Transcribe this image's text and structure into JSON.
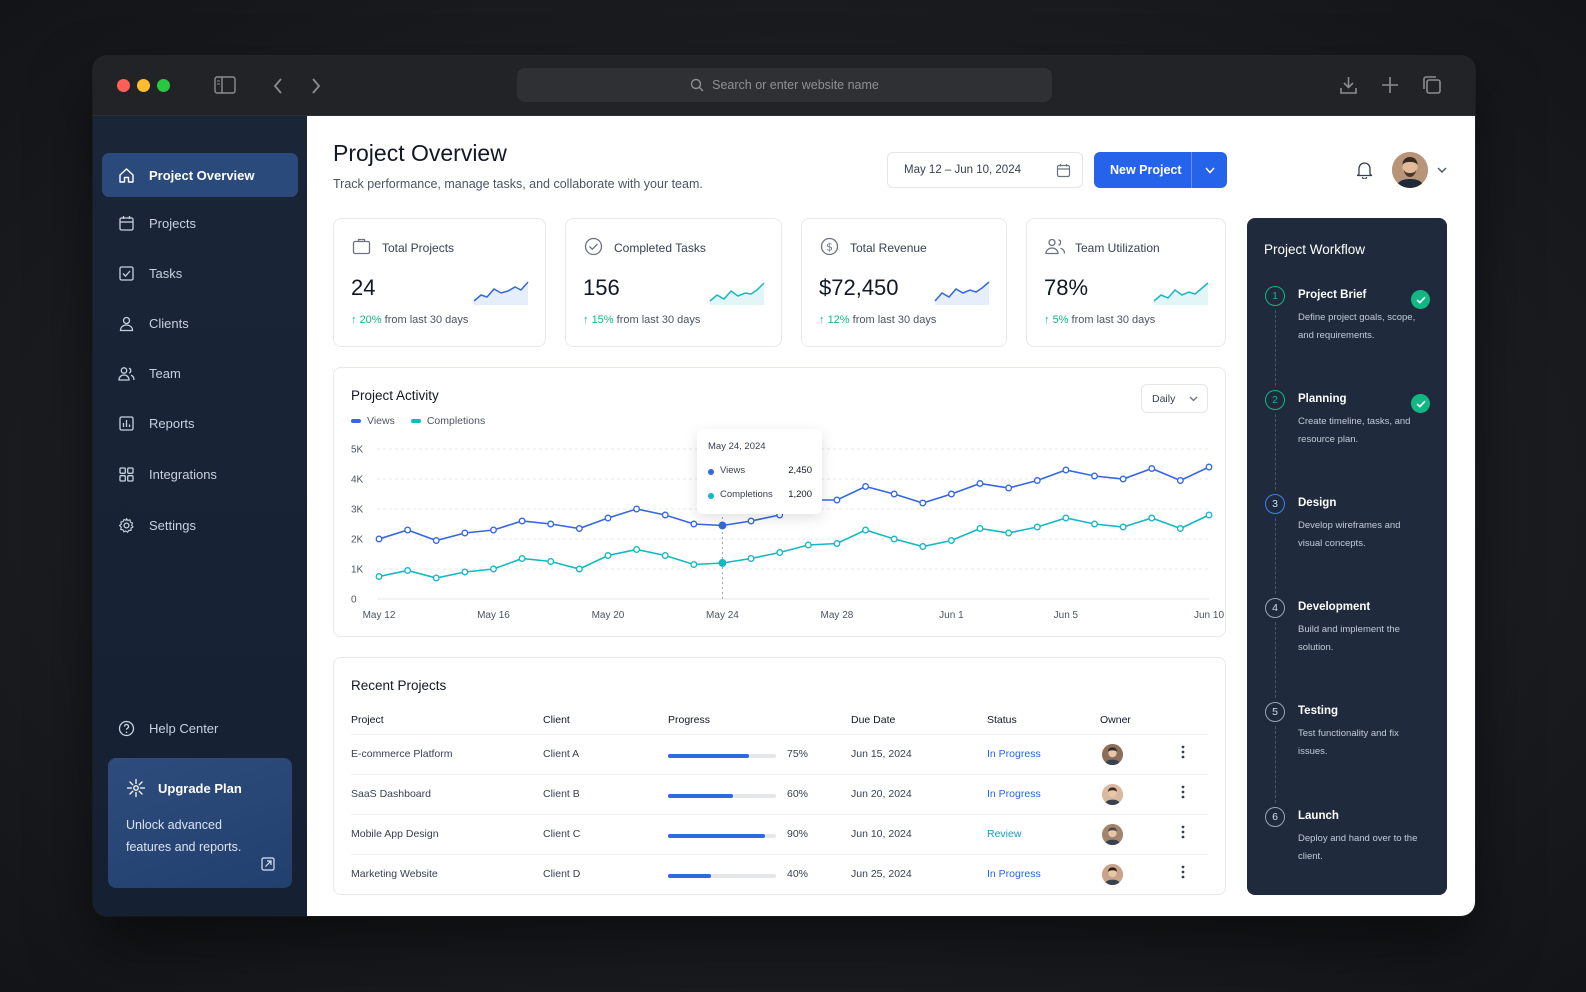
{
  "browser": {
    "url_placeholder": "Search or enter website name",
    "icons": [
      "sidebar-toggle-icon",
      "back-icon",
      "forward-icon",
      "search-icon",
      "download-icon",
      "plus-icon",
      "tabs-icon"
    ]
  },
  "sidebar": {
    "items": [
      {
        "label": "Project Overview",
        "icon": "home-icon",
        "active": true
      },
      {
        "label": "Projects",
        "icon": "calendar-icon"
      },
      {
        "label": "Tasks",
        "icon": "checkbox-icon"
      },
      {
        "label": "Clients",
        "icon": "user-icon"
      },
      {
        "label": "Team",
        "icon": "users-icon"
      },
      {
        "label": "Reports",
        "icon": "report-icon"
      },
      {
        "label": "Integrations",
        "icon": "grid-icon"
      },
      {
        "label": "Settings",
        "icon": "gear-icon"
      }
    ],
    "help": "Help Center",
    "upgrade": {
      "title": "Upgrade Plan",
      "desc_line1": "Unlock advanced",
      "desc_line2": "features and reports."
    }
  },
  "header": {
    "title": "Project Overview",
    "subtitle": "Track performance, manage tasks, and collaborate with your team.",
    "date_range": "May 12 – Jun 10, 2024",
    "new_project": "New Project"
  },
  "kpis": [
    {
      "label": "Total Projects",
      "value": "24",
      "delta": "20%",
      "delta_text": "from last 30 days",
      "icon": "briefcase-icon"
    },
    {
      "label": "Completed Tasks",
      "value": "156",
      "delta": "15%",
      "delta_text": "from last 30 days",
      "icon": "check-circle-icon"
    },
    {
      "label": "Total Revenue",
      "value": "$72,450",
      "delta": "12%",
      "delta_text": "from last 30 days",
      "icon": "dollar-icon"
    },
    {
      "label": "Team Utilization",
      "value": "78%",
      "delta": "5%",
      "delta_text": "from last 30 days",
      "icon": "team-icon"
    }
  ],
  "activity": {
    "title": "Project Activity",
    "range_select": "Daily",
    "tooltip": {
      "date": "May 24, 2024",
      "views_label": "Views",
      "views": "2,450",
      "completions_label": "Completions",
      "completions": "1,200"
    }
  },
  "chart_data": {
    "type": "line",
    "title": "Project Activity",
    "x": [
      "May 12",
      "May 13",
      "May 14",
      "May 15",
      "May 16",
      "May 17",
      "May 18",
      "May 19",
      "May 20",
      "May 21",
      "May 22",
      "May 23",
      "May 24",
      "May 25",
      "May 26",
      "May 27",
      "May 28",
      "May 29",
      "May 30",
      "May 31",
      "Jun 1",
      "Jun 2",
      "Jun 3",
      "Jun 4",
      "Jun 5",
      "Jun 6",
      "Jun 7",
      "Jun 8",
      "Jun 9",
      "Jun 10"
    ],
    "x_tick_labels": [
      "May 12",
      "May 16",
      "May 20",
      "May 24",
      "May 28",
      "Jun 1",
      "Jun 5",
      "Jun 10"
    ],
    "y_tick_labels": [
      "0",
      "1K",
      "2K",
      "3K",
      "4K",
      "5K"
    ],
    "ylim": [
      0,
      5000
    ],
    "grid": true,
    "legend": "top-left",
    "series": [
      {
        "name": "Views",
        "color": "#3467e0",
        "values": [
          2000,
          2300,
          1950,
          2200,
          2300,
          2600,
          2500,
          2350,
          2700,
          3000,
          2800,
          2500,
          2450,
          2600,
          2800,
          3300,
          3300,
          3750,
          3500,
          3200,
          3500,
          3850,
          3700,
          3950,
          4300,
          4100,
          4000,
          4350,
          3950,
          4400
        ]
      },
      {
        "name": "Completions",
        "color": "#14b8c4",
        "values": [
          750,
          950,
          700,
          900,
          1000,
          1350,
          1250,
          1000,
          1450,
          1650,
          1450,
          1150,
          1200,
          1350,
          1550,
          1800,
          1850,
          2300,
          2000,
          1750,
          1950,
          2350,
          2200,
          2400,
          2700,
          2500,
          2400,
          2700,
          2350,
          2800
        ]
      }
    ]
  },
  "recent": {
    "title": "Recent Projects",
    "headers": [
      "Project",
      "Client",
      "Progress",
      "Due Date",
      "Status",
      "Owner"
    ],
    "rows": [
      {
        "project": "E-commerce Platform",
        "client": "Client A",
        "progress": 75,
        "progress_label": "75%",
        "due": "Jun 15, 2024",
        "status": "In Progress",
        "status_color": "#2563eb"
      },
      {
        "project": "SaaS Dashboard",
        "client": "Client B",
        "progress": 60,
        "progress_label": "60%",
        "due": "Jun 20, 2024",
        "status": "In Progress",
        "status_color": "#2563eb"
      },
      {
        "project": "Mobile App Design",
        "client": "Client C",
        "progress": 90,
        "progress_label": "90%",
        "due": "Jun 10, 2024",
        "status": "Review",
        "status_color": "#0ea5b7"
      },
      {
        "project": "Marketing Website",
        "client": "Client D",
        "progress": 40,
        "progress_label": "40%",
        "due": "Jun 25, 2024",
        "status": "In Progress",
        "status_color": "#2563eb"
      }
    ]
  },
  "workflow": {
    "title": "Project Workflow",
    "steps": [
      {
        "num": "1",
        "title": "Project Brief",
        "desc": "Define project goals, scope, and requirements.",
        "done": true
      },
      {
        "num": "2",
        "title": "Planning",
        "desc": "Create timeline, tasks, and resource plan.",
        "done": true
      },
      {
        "num": "3",
        "title": "Design",
        "desc": "Develop wireframes and visual concepts.",
        "current": true
      },
      {
        "num": "4",
        "title": "Development",
        "desc": "Build and implement the solution."
      },
      {
        "num": "5",
        "title": "Testing",
        "desc": "Test functionality and fix issues."
      },
      {
        "num": "6",
        "title": "Launch",
        "desc": "Deploy and hand over to the client."
      }
    ]
  },
  "colors": {
    "accent": "#2563eb",
    "sidebar_bg": "#1a2537",
    "success": "#10b981"
  }
}
